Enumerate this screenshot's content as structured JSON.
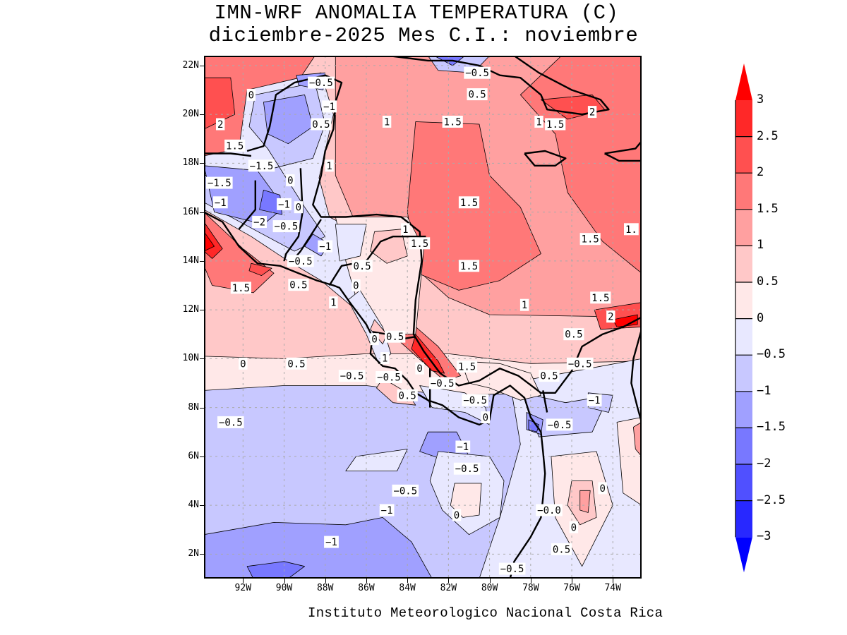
{
  "title": {
    "line1": "IMN-WRF  ANOMALIA TEMPERATURA (C)",
    "line2": "diciembre-2025 Mes C.I.: noviembre"
  },
  "credit": "Instituto Meteorologico Nacional Costa Rica",
  "axes": {
    "lat_labels": [
      "22N",
      "20N",
      "18N",
      "16N",
      "14N",
      "12N",
      "10N",
      "8N",
      "6N",
      "4N",
      "2N"
    ],
    "lat_values": [
      22,
      20,
      18,
      16,
      14,
      12,
      10,
      8,
      6,
      4,
      2
    ],
    "lon_labels": [
      "92W",
      "90W",
      "88W",
      "86W",
      "84W",
      "82W",
      "80W",
      "78W",
      "76W",
      "74W"
    ],
    "lon_values": [
      -92,
      -90,
      -88,
      -86,
      -84,
      -82,
      -80,
      -78,
      -76,
      -74
    ],
    "lat_range": [
      1,
      22.4
    ],
    "lon_range": [
      -93.9,
      -72.6
    ]
  },
  "colorbar": {
    "label_values": [
      "3",
      "2.5",
      "2",
      "1.5",
      "1",
      "0.5",
      "0",
      "−0.5",
      "−1",
      "−1.5",
      "−2",
      "−2.5",
      "−3"
    ],
    "levels": [
      3,
      2.5,
      2,
      1.5,
      1,
      0.5,
      0,
      -0.5,
      -1,
      -1.5,
      -2,
      -2.5,
      -3
    ],
    "colors": {
      "above_3": "#ff0000",
      "2.5_3": "#ff2828",
      "2_2.5": "#ff5050",
      "1.5_2": "#ff7878",
      "1_1.5": "#ffa0a0",
      "0.5_1": "#ffc8c8",
      "0_0.5": "#ffe8e8",
      "-0.5_0": "#e8e8ff",
      "-1_-0.5": "#c8c8ff",
      "-1.5_-1": "#a0a0ff",
      "-2_-1.5": "#7878ff",
      "-2.5_-2": "#5050ff",
      "-3_-2.5": "#2828ff",
      "below_-3": "#0000ff"
    }
  },
  "contour_labels": [
    {
      "text": "0",
      "lon": -91.6,
      "lat": 20.8
    },
    {
      "text": "−0.5",
      "lon": -88.2,
      "lat": 21.3
    },
    {
      "text": "−1",
      "lon": -87.8,
      "lat": 20.9
    },
    {
      "text": "−0.5",
      "lon": -80.6,
      "lat": 21.7
    },
    {
      "text": "0.5",
      "lon": -80.6,
      "lat": 21.4
    },
    {
      "text": "2",
      "lon": -93.8,
      "lat": 19.6
    },
    {
      "text": "1.5",
      "lon": -92.4,
      "lat": 19.3
    },
    {
      "text": "0.5",
      "lon": -88.2,
      "lat": 19.6
    },
    {
      "text": "1",
      "lon": -85.0,
      "lat": 19.7
    },
    {
      "text": "1.5",
      "lon": -81.8,
      "lat": 19.7
    },
    {
      "text": "1",
      "lon": -77.6,
      "lat": 19.7
    },
    {
      "text": "1.5",
      "lon": -76.8,
      "lat": 19.6
    },
    {
      "text": "2",
      "lon": -75.0,
      "lat": 20.1
    },
    {
      "text": "−1.5",
      "lon": -91.1,
      "lat": 17.9
    },
    {
      "text": "1",
      "lon": -87.8,
      "lat": 17.9
    },
    {
      "text": "−1.5",
      "lon": -93.4,
      "lat": 17.2
    },
    {
      "text": "0",
      "lon": -89.7,
      "lat": 17.3
    },
    {
      "text": "−1",
      "lon": -90.0,
      "lat": 16.9
    },
    {
      "text": "−1",
      "lon": -93.1,
      "lat": 16.4
    },
    {
      "text": "0",
      "lon": -89.3,
      "lat": 16.2
    },
    {
      "text": "−0.5",
      "lon": -89.9,
      "lat": 16.0
    },
    {
      "text": "−2",
      "lon": -91.2,
      "lat": 15.6
    },
    {
      "text": "1.5",
      "lon": -81.0,
      "lat": 16.4
    },
    {
      "text": "1",
      "lon": -84.1,
      "lat": 15.3
    },
    {
      "text": "1.5",
      "lon": -83.4,
      "lat": 15.3
    },
    {
      "text": "1.",
      "lon": -73.1,
      "lat": 15.3
    },
    {
      "text": "1.5",
      "lon": -75.1,
      "lat": 14.9
    },
    {
      "text": "−1",
      "lon": -88.0,
      "lat": 14.6
    },
    {
      "text": "−0.5",
      "lon": -89.2,
      "lat": 14.0
    },
    {
      "text": "0.5",
      "lon": -89.3,
      "lat": 13.6
    },
    {
      "text": "0.5",
      "lon": -86.2,
      "lat": 13.8
    },
    {
      "text": "1.5",
      "lon": -81.0,
      "lat": 13.8
    },
    {
      "text": "0",
      "lon": -86.5,
      "lat": 13.0
    },
    {
      "text": "1.5",
      "lon": -92.1,
      "lat": 12.9
    },
    {
      "text": "1",
      "lon": -87.6,
      "lat": 12.3
    },
    {
      "text": "1.5",
      "lon": -74.6,
      "lat": 12.5
    },
    {
      "text": "2",
      "lon": -74.1,
      "lat": 12.3
    },
    {
      "text": "1",
      "lon": -78.3,
      "lat": 12.2
    },
    {
      "text": "0.5",
      "lon": -84.6,
      "lat": 10.9
    },
    {
      "text": "0",
      "lon": -85.6,
      "lat": 10.8
    },
    {
      "text": "1",
      "lon": -85.1,
      "lat": 10.6
    },
    {
      "text": "−0.5",
      "lon": -84.9,
      "lat": 10.4
    },
    {
      "text": "0.5",
      "lon": -75.9,
      "lat": 11.0
    },
    {
      "text": "0",
      "lon": -92.0,
      "lat": 9.8
    },
    {
      "text": "0.5",
      "lon": -89.4,
      "lat": 9.8
    },
    {
      "text": "−0.5",
      "lon": -86.7,
      "lat": 9.3
    },
    {
      "text": "−0.5",
      "lon": -75.6,
      "lat": 9.8
    },
    {
      "text": "0.5",
      "lon": -77.1,
      "lat": 9.3
    },
    {
      "text": "0",
      "lon": -83.4,
      "lat": 9.6
    },
    {
      "text": "−0.5",
      "lon": -82.3,
      "lat": 9.0
    },
    {
      "text": "1.5",
      "lon": -81.1,
      "lat": 9.1
    },
    {
      "text": "0.5",
      "lon": -84.0,
      "lat": 8.5
    },
    {
      "text": "−0.5",
      "lon": -80.7,
      "lat": 8.3
    },
    {
      "text": "−1",
      "lon": -74.9,
      "lat": 8.3
    },
    {
      "text": "0",
      "lon": -80.2,
      "lat": 7.6
    },
    {
      "text": "−0.5",
      "lon": -76.6,
      "lat": 7.3
    },
    {
      "text": "−0.5",
      "lon": -92.6,
      "lat": 7.4
    },
    {
      "text": "−1",
      "lon": -81.3,
      "lat": 6.4
    },
    {
      "text": "−0.5",
      "lon": -81.1,
      "lat": 5.5
    },
    {
      "text": "−0.5",
      "lon": -84.1,
      "lat": 4.6
    },
    {
      "text": "0",
      "lon": -74.5,
      "lat": 4.7
    },
    {
      "text": "−0.0",
      "lon": -77.1,
      "lat": 3.8
    },
    {
      "text": "−1",
      "lon": -85.0,
      "lat": 3.8
    },
    {
      "text": "0",
      "lon": -81.6,
      "lat": 3.6
    },
    {
      "text": "0",
      "lon": -75.9,
      "lat": 3.1
    },
    {
      "text": "−1",
      "lon": -87.7,
      "lat": 2.5
    },
    {
      "text": "0.5",
      "lon": -76.5,
      "lat": 2.2
    },
    {
      "text": "−0.5",
      "lon": -78.9,
      "lat": 1.4
    }
  ]
}
